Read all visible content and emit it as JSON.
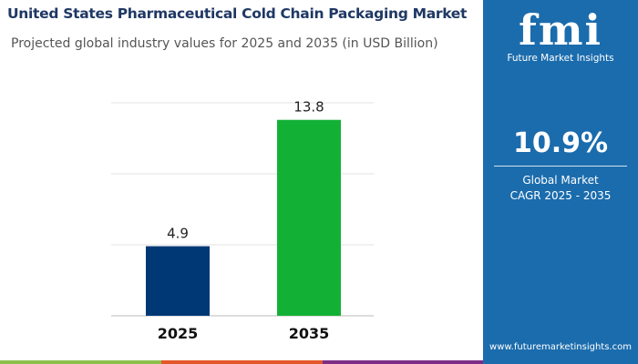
{
  "header": {
    "title": "United States Pharmaceutical Cold Chain Packaging Market",
    "subtitle": "Projected global industry values for 2025 and 2035 (in USD Billion)"
  },
  "chart_data": {
    "type": "bar",
    "categories": [
      "2025",
      "2035"
    ],
    "values": [
      4.9,
      13.8
    ],
    "data_labels": [
      "4.9",
      "13.8"
    ],
    "colors": [
      "#003876",
      "#12b136"
    ],
    "ylim": [
      0,
      15
    ],
    "grid": true,
    "gridlines": [
      5,
      10,
      15
    ],
    "title": "United States Pharmaceutical Cold Chain Packaging Market",
    "xlabel": "",
    "ylabel": ""
  },
  "panel": {
    "logo": "fmi",
    "brand": "Future Market Insights",
    "cagr": "10.9%",
    "cagr_label_1": "Global Market",
    "cagr_label_2": "CAGR 2025 - 2035",
    "url": "www.futuremarketinsights.com",
    "color": "#1b6cad"
  },
  "stripes": [
    "#8cc04b",
    "#e4572a",
    "#7d2d85"
  ]
}
